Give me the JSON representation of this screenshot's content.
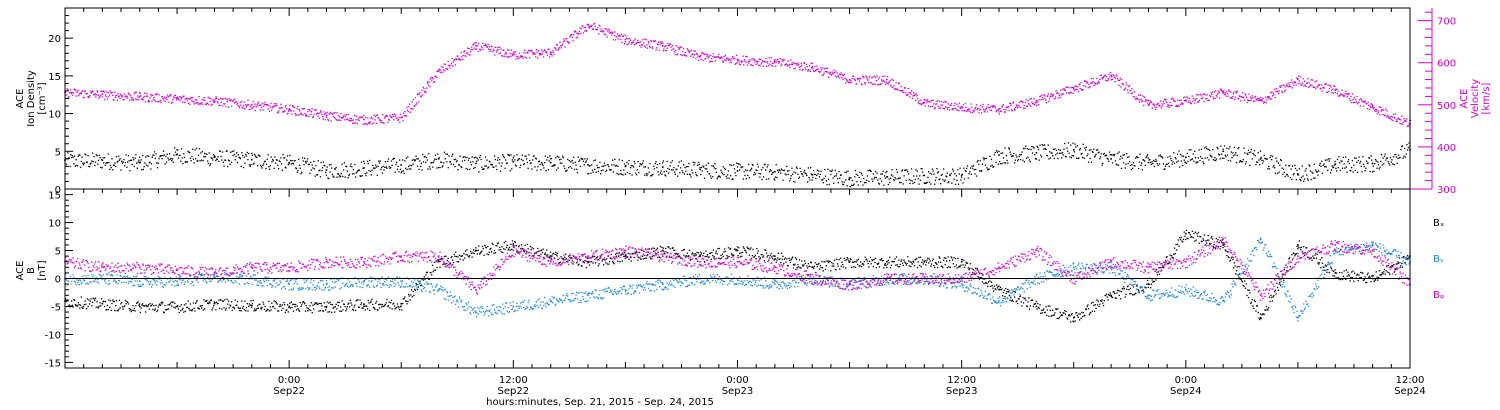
{
  "colors": {
    "black": "#000000",
    "magenta": "#d400d4",
    "blue": "#1e88e5"
  },
  "chart_data": [
    {
      "type": "scatter",
      "panel": "top",
      "left_axis_label": [
        "ACE",
        "Ion Density",
        "[cm⁻³]"
      ],
      "right_axis_label": [
        "ACE",
        "Velocity",
        "[km/s]"
      ],
      "ylim_left": [
        0,
        24
      ],
      "yticks_left": [
        0,
        5,
        10,
        15,
        20
      ],
      "ylim_right": [
        300,
        730
      ],
      "yticks_right": [
        300,
        400,
        500,
        600,
        700
      ],
      "grid": false,
      "series": [
        {
          "name": "Ion Density",
          "axis": "left",
          "color": "#000000",
          "x": [
            0,
            2,
            4,
            6,
            8,
            10,
            12,
            14,
            16,
            18,
            20,
            22,
            24,
            26,
            28,
            30,
            32,
            34,
            36,
            38,
            40,
            42,
            44,
            46,
            48,
            50,
            52,
            54,
            56,
            58,
            60,
            62,
            64,
            66,
            68,
            70,
            72
          ],
          "y": [
            3.8,
            3.8,
            3.5,
            4.6,
            4.2,
            3.9,
            3.5,
            2.5,
            2.8,
            3.2,
            4.0,
            3.4,
            3.6,
            3.5,
            3.2,
            3.0,
            2.9,
            2.6,
            2.4,
            2.3,
            1.9,
            1.5,
            1.6,
            1.8,
            1.8,
            4.5,
            4.8,
            5.2,
            4.0,
            3.5,
            4.2,
            5.0,
            4.0,
            2.0,
            3.3,
            3.4,
            5.2
          ]
        },
        {
          "name": "Velocity",
          "axis": "right",
          "color": "#d400d4",
          "x": [
            0,
            2,
            4,
            6,
            8,
            10,
            12,
            14,
            16,
            18,
            20,
            22,
            24,
            26,
            28,
            30,
            32,
            34,
            36,
            38,
            40,
            42,
            44,
            46,
            48,
            50,
            52,
            54,
            56,
            58,
            60,
            62,
            64,
            66,
            68,
            70,
            72
          ],
          "y": [
            530,
            525,
            520,
            515,
            510,
            500,
            490,
            475,
            465,
            470,
            580,
            640,
            620,
            625,
            690,
            655,
            640,
            615,
            608,
            602,
            590,
            560,
            560,
            505,
            495,
            490,
            510,
            540,
            570,
            500,
            510,
            530,
            510,
            560,
            535,
            495,
            455
          ]
        }
      ]
    },
    {
      "type": "scatter",
      "panel": "bottom",
      "left_axis_label": [
        "ACE",
        "B",
        "[nT]"
      ],
      "ylim": [
        -16,
        16
      ],
      "yticks": [
        -15,
        -10,
        -5,
        0,
        5,
        10,
        15
      ],
      "zero_line": true,
      "grid": false,
      "legend_placement": "right",
      "series": [
        {
          "name": "Bₓ",
          "color": "#000000",
          "x": [
            0,
            2,
            4,
            6,
            8,
            10,
            12,
            14,
            16,
            18,
            20,
            22,
            24,
            26,
            28,
            30,
            32,
            34,
            36,
            38,
            40,
            42,
            44,
            46,
            48,
            50,
            52,
            54,
            56,
            58,
            60,
            62,
            64,
            66,
            68,
            70,
            72
          ],
          "y": [
            -4,
            -4.5,
            -5,
            -5,
            -4.5,
            -4.8,
            -5,
            -5,
            -4.6,
            -4.5,
            3,
            5,
            6,
            4,
            3,
            4,
            5,
            4,
            5,
            4,
            2,
            3,
            3,
            3,
            3,
            -2,
            -5,
            -7,
            -3,
            -1,
            8,
            6,
            -7,
            6,
            1,
            0,
            4
          ]
        },
        {
          "name": "Bᵧ",
          "color": "#1e88e5",
          "x": [
            0,
            2,
            4,
            6,
            8,
            10,
            12,
            14,
            16,
            18,
            20,
            22,
            24,
            26,
            28,
            30,
            32,
            34,
            36,
            38,
            40,
            42,
            44,
            46,
            48,
            50,
            52,
            54,
            56,
            58,
            60,
            62,
            64,
            66,
            68,
            70,
            72
          ],
          "y": [
            0,
            0,
            -0.5,
            -0.5,
            0.3,
            0,
            -1,
            -1,
            -0.5,
            -0.5,
            -2,
            -6,
            -5,
            -4,
            -3,
            -2,
            -1,
            0,
            0,
            -1,
            0,
            -1,
            0,
            0,
            -1,
            -4,
            0,
            2,
            2,
            -3,
            -2,
            -4,
            7,
            -7,
            5,
            6,
            3
          ]
        },
        {
          "name": "Bᵩ",
          "color": "#d400d4",
          "x": [
            0,
            2,
            4,
            6,
            8,
            10,
            12,
            14,
            16,
            18,
            20,
            22,
            24,
            26,
            28,
            30,
            32,
            34,
            36,
            38,
            40,
            42,
            44,
            46,
            48,
            50,
            52,
            54,
            56,
            58,
            60,
            62,
            64,
            66,
            68,
            70,
            72
          ],
          "y": [
            3,
            2,
            2,
            1.5,
            1,
            2,
            2,
            3,
            3,
            4,
            4,
            -2,
            5,
            3,
            4,
            5,
            4,
            3,
            3,
            2,
            0,
            -1,
            0,
            0,
            0,
            2,
            5,
            0,
            3,
            2,
            3,
            7,
            -3,
            4,
            6,
            5,
            -1
          ]
        }
      ]
    }
  ],
  "x_axis": {
    "range_hours": [
      0,
      72
    ],
    "ticks": [
      {
        "hour": 12,
        "line1": "0:00",
        "line2": "Sep22"
      },
      {
        "hour": 24,
        "line1": "12:00",
        "line2": "Sep22"
      },
      {
        "hour": 36,
        "line1": "0:00",
        "line2": "Sep23"
      },
      {
        "hour": 48,
        "line1": "12:00",
        "line2": "Sep23"
      },
      {
        "hour": 60,
        "line1": "0:00",
        "line2": "Sep24"
      },
      {
        "hour": 72,
        "line1": "12:00",
        "line2": "Sep24"
      }
    ],
    "title": "hours:minutes, Sep. 21, 2015 - Sep. 24, 2015"
  }
}
